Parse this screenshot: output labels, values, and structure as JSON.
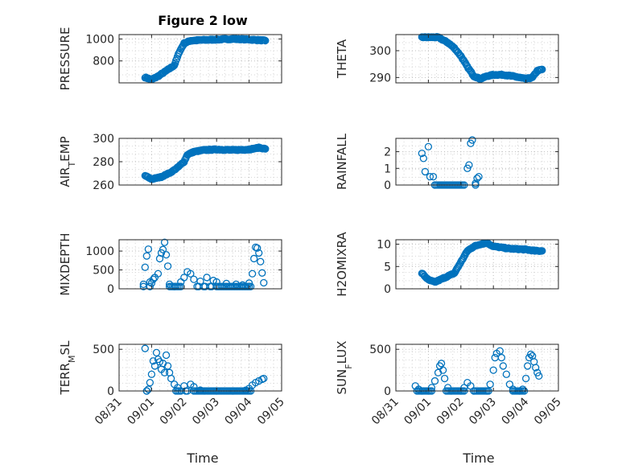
{
  "title": "Figure 2 low",
  "xlabel": "Time",
  "xticks": [
    "08/31",
    "09/01",
    "09/02",
    "09/03",
    "09/04",
    "09/05"
  ],
  "colors": {
    "marker": "#0072BD",
    "axis": "#262626",
    "grid": "#bdbdbd"
  },
  "chart_data": [
    {
      "id": "pressure",
      "type": "scatter",
      "ylabel": "PRESSURE",
      "ylim": [
        600,
        1040
      ],
      "yticks": [
        800,
        1000
      ],
      "grid": true,
      "x_range": [
        "08/31",
        "09/05"
      ],
      "segments": [
        [
          0.8,
          650
        ],
        [
          1.0,
          630
        ],
        [
          1.2,
          660
        ],
        [
          1.5,
          720
        ],
        [
          1.7,
          760
        ],
        [
          1.85,
          880
        ],
        [
          2.0,
          960
        ],
        [
          2.2,
          985
        ],
        [
          2.5,
          990
        ],
        [
          3.0,
          995
        ],
        [
          3.5,
          1000
        ],
        [
          4.0,
          995
        ],
        [
          4.3,
          990
        ],
        [
          4.5,
          985
        ]
      ]
    },
    {
      "id": "theta",
      "type": "scatter",
      "ylabel": "THETA",
      "ylim": [
        288,
        306
      ],
      "yticks": [
        290,
        300
      ],
      "grid": true,
      "x_range": [
        "08/31",
        "09/05"
      ],
      "segments": [
        [
          0.8,
          305
        ],
        [
          1.0,
          305
        ],
        [
          1.3,
          305
        ],
        [
          1.6,
          303
        ],
        [
          1.8,
          301
        ],
        [
          2.0,
          298
        ],
        [
          2.2,
          294
        ],
        [
          2.4,
          290.5
        ],
        [
          2.6,
          289.5
        ],
        [
          2.8,
          290.5
        ],
        [
          3.0,
          291
        ],
        [
          3.3,
          291
        ],
        [
          3.6,
          290.5
        ],
        [
          4.0,
          289.5
        ],
        [
          4.2,
          290
        ],
        [
          4.35,
          292.5
        ],
        [
          4.5,
          293
        ]
      ]
    },
    {
      "id": "airtemp",
      "type": "scatter",
      "ylabel": "AIR_TEMP",
      "ylim": [
        260,
        300
      ],
      "yticks": [
        260,
        280,
        300
      ],
      "grid": true,
      "x_range": [
        "08/31",
        "09/05"
      ],
      "segments": [
        [
          0.8,
          268
        ],
        [
          1.0,
          265
        ],
        [
          1.3,
          267
        ],
        [
          1.6,
          271
        ],
        [
          1.8,
          275
        ],
        [
          2.0,
          280
        ],
        [
          2.1,
          286
        ],
        [
          2.3,
          288.5
        ],
        [
          2.6,
          290
        ],
        [
          3.0,
          290.5
        ],
        [
          3.5,
          290
        ],
        [
          4.0,
          290.5
        ],
        [
          4.3,
          292
        ],
        [
          4.5,
          291
        ]
      ]
    },
    {
      "id": "rainfall",
      "type": "scatter",
      "ylabel": "RAINFALL",
      "ylim": [
        0,
        2.8
      ],
      "yticks": [
        0,
        1,
        2
      ],
      "grid": true,
      "x_range": [
        "08/31",
        "09/05"
      ],
      "points": [
        [
          0.8,
          1.9
        ],
        [
          0.85,
          1.6
        ],
        [
          0.9,
          0.8
        ],
        [
          1.0,
          2.3
        ],
        [
          1.05,
          0.5
        ],
        [
          1.15,
          0.5
        ],
        [
          1.2,
          0.0
        ],
        [
          2.2,
          1.0
        ],
        [
          2.25,
          1.2
        ],
        [
          2.3,
          2.5
        ],
        [
          2.35,
          2.7
        ],
        [
          2.5,
          0.4
        ],
        [
          2.55,
          0.5
        ],
        [
          2.45,
          0.1
        ]
      ],
      "baseline": 0
    },
    {
      "id": "mixdepth",
      "type": "scatter",
      "ylabel": "MIXDEPTH",
      "ylim": [
        0,
        1300
      ],
      "yticks": [
        0,
        500,
        1000
      ],
      "grid": true,
      "x_range": [
        "08/31",
        "09/05"
      ],
      "points": [
        [
          0.75,
          120
        ],
        [
          0.8,
          570
        ],
        [
          0.85,
          870
        ],
        [
          0.9,
          1050
        ],
        [
          0.95,
          180
        ],
        [
          1.0,
          150
        ],
        [
          1.05,
          250
        ],
        [
          1.1,
          300
        ],
        [
          1.2,
          400
        ],
        [
          1.25,
          800
        ],
        [
          1.3,
          950
        ],
        [
          1.35,
          1040
        ],
        [
          1.4,
          1230
        ],
        [
          1.45,
          900
        ],
        [
          1.5,
          600
        ],
        [
          1.55,
          120
        ],
        [
          1.7,
          60
        ],
        [
          1.9,
          180
        ],
        [
          2.0,
          300
        ],
        [
          2.1,
          450
        ],
        [
          2.2,
          400
        ],
        [
          2.3,
          250
        ],
        [
          2.5,
          200
        ],
        [
          2.7,
          300
        ],
        [
          2.9,
          220
        ],
        [
          3.0,
          180
        ],
        [
          3.3,
          140
        ],
        [
          3.6,
          120
        ],
        [
          3.8,
          100
        ],
        [
          4.0,
          150
        ],
        [
          4.1,
          400
        ],
        [
          4.15,
          800
        ],
        [
          4.2,
          1100
        ],
        [
          4.25,
          1080
        ],
        [
          4.3,
          950
        ],
        [
          4.35,
          720
        ],
        [
          4.4,
          420
        ],
        [
          4.45,
          160
        ]
      ],
      "baseline": 60
    },
    {
      "id": "h2omixra",
      "type": "scatter",
      "ylabel": "H2OMIXRA",
      "ylim": [
        0,
        11
      ],
      "yticks": [
        0,
        5,
        10
      ],
      "grid": true,
      "x_range": [
        "08/31",
        "09/05"
      ],
      "segments": [
        [
          0.8,
          3.5
        ],
        [
          1.0,
          2.0
        ],
        [
          1.2,
          1.5
        ],
        [
          1.5,
          2.5
        ],
        [
          1.8,
          3.5
        ],
        [
          2.0,
          6.0
        ],
        [
          2.2,
          8.5
        ],
        [
          2.4,
          9.5
        ],
        [
          2.6,
          10.0
        ],
        [
          2.8,
          10.3
        ],
        [
          3.0,
          9.5
        ],
        [
          3.5,
          9.0
        ],
        [
          4.0,
          8.8
        ],
        [
          4.3,
          8.5
        ],
        [
          4.5,
          8.5
        ]
      ]
    },
    {
      "id": "terrmsl",
      "type": "scatter",
      "ylabel": "TERR_MSL",
      "ylim": [
        0,
        560
      ],
      "yticks": [
        0,
        500
      ],
      "grid": true,
      "x_range": [
        "08/31",
        "09/05"
      ],
      "points": [
        [
          0.8,
          510
        ],
        [
          0.85,
          0
        ],
        [
          0.9,
          20
        ],
        [
          0.95,
          100
        ],
        [
          1.0,
          200
        ],
        [
          1.05,
          360
        ],
        [
          1.1,
          300
        ],
        [
          1.15,
          460
        ],
        [
          1.2,
          380
        ],
        [
          1.25,
          350
        ],
        [
          1.3,
          260
        ],
        [
          1.35,
          330
        ],
        [
          1.4,
          220
        ],
        [
          1.45,
          430
        ],
        [
          1.5,
          300
        ],
        [
          1.55,
          220
        ],
        [
          1.6,
          150
        ],
        [
          1.7,
          80
        ],
        [
          1.8,
          40
        ],
        [
          2.0,
          60
        ],
        [
          2.2,
          80
        ],
        [
          2.3,
          50
        ],
        [
          2.5,
          10
        ],
        [
          3.0,
          0
        ],
        [
          3.5,
          0
        ],
        [
          3.9,
          10
        ],
        [
          4.0,
          30
        ],
        [
          4.1,
          70
        ],
        [
          4.2,
          100
        ],
        [
          4.3,
          120
        ],
        [
          4.4,
          140
        ],
        [
          4.45,
          150
        ]
      ],
      "baseline": 0
    },
    {
      "id": "sunflux",
      "type": "scatter",
      "ylabel": "SUN_FLUX",
      "ylim": [
        0,
        560
      ],
      "yticks": [
        0,
        500
      ],
      "grid": true,
      "x_range": [
        "08/31",
        "09/05"
      ],
      "points": [
        [
          0.6,
          60
        ],
        [
          0.7,
          20
        ],
        [
          0.8,
          0
        ],
        [
          1.0,
          0
        ],
        [
          1.1,
          40
        ],
        [
          1.2,
          120
        ],
        [
          1.3,
          220
        ],
        [
          1.35,
          300
        ],
        [
          1.4,
          330
        ],
        [
          1.45,
          250
        ],
        [
          1.5,
          150
        ],
        [
          1.6,
          40
        ],
        [
          1.7,
          0
        ],
        [
          2.0,
          0
        ],
        [
          2.1,
          40
        ],
        [
          2.2,
          100
        ],
        [
          2.3,
          60
        ],
        [
          2.4,
          0
        ],
        [
          2.8,
          0
        ],
        [
          2.9,
          80
        ],
        [
          3.0,
          250
        ],
        [
          3.05,
          400
        ],
        [
          3.1,
          450
        ],
        [
          3.2,
          480
        ],
        [
          3.25,
          400
        ],
        [
          3.3,
          300
        ],
        [
          3.4,
          200
        ],
        [
          3.5,
          80
        ],
        [
          3.6,
          20
        ],
        [
          3.8,
          0
        ],
        [
          3.9,
          20
        ],
        [
          4.0,
          150
        ],
        [
          4.05,
          300
        ],
        [
          4.1,
          400
        ],
        [
          4.15,
          440
        ],
        [
          4.2,
          420
        ],
        [
          4.25,
          350
        ],
        [
          4.3,
          280
        ],
        [
          4.35,
          220
        ],
        [
          4.4,
          180
        ]
      ],
      "baseline": 0
    }
  ]
}
